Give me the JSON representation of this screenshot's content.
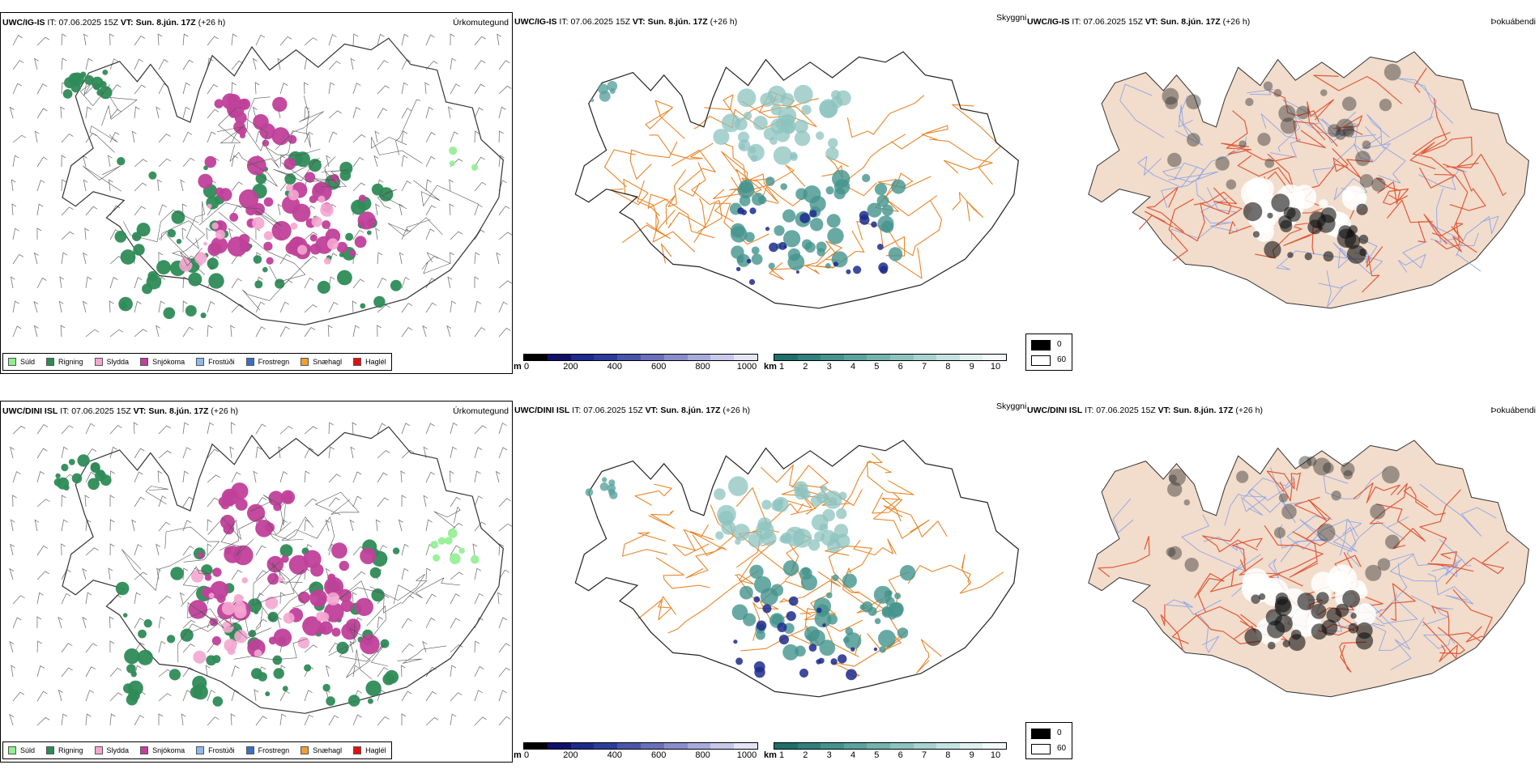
{
  "rows": [
    {
      "model": "UWC/IG-IS",
      "it_label": "IT:",
      "it_value": "07.06.2025 15Z",
      "vt_label": "VT:",
      "vt_value": "Sun. 8.jún. 17Z",
      "lead": "(+26 h)"
    },
    {
      "model": "UWC/DINI ISL",
      "it_label": "IT:",
      "it_value": "07.06.2025 15Z",
      "vt_label": "VT:",
      "vt_value": "Sun. 8.jún. 17Z",
      "lead": "(+26 h)"
    }
  ],
  "panel_titles": {
    "precip": "Úrkomutegund",
    "visibility": "Skyggni",
    "fog": "Þokuábendi"
  },
  "precip_legend": [
    {
      "label": "Súld",
      "color": "#90ee90"
    },
    {
      "label": "Rigning",
      "color": "#2e8b57"
    },
    {
      "label": "Slydda",
      "color": "#f4a6d0"
    },
    {
      "label": "Snjókoma",
      "color": "#c0409a"
    },
    {
      "label": "Frostúði",
      "color": "#8fb8ec"
    },
    {
      "label": "Frostregn",
      "color": "#3a6fc4"
    },
    {
      "label": "Snæhagl",
      "color": "#f0a030"
    },
    {
      "label": "Haglél",
      "color": "#e01010"
    }
  ],
  "ceiling_bar": {
    "unit": "m",
    "ticks": [
      "0",
      "200",
      "400",
      "600",
      "800",
      "1000"
    ],
    "colors": [
      "#000000",
      "#10106a",
      "#1c2a8c",
      "#2c3c9c",
      "#4a55aa",
      "#6a6fbc",
      "#8a8ccc",
      "#a9aadc",
      "#c7c8ea",
      "#e3e4f5"
    ]
  },
  "vis_bar": {
    "unit": "km",
    "ticks": [
      "1",
      "2",
      "3",
      "4",
      "5",
      "6",
      "7",
      "8",
      "9",
      "10"
    ],
    "colors": [
      "#1f6f6a",
      "#2f817c",
      "#44938d",
      "#5aa39e",
      "#72b3ae",
      "#8cc3bf",
      "#a7d3d0",
      "#c3e2e0",
      "#def0ef",
      "#f4fafa"
    ]
  },
  "fog_legend": [
    {
      "label": "0",
      "color": "#000000"
    },
    {
      "label": "60",
      "color": "#ffffff"
    }
  ],
  "colors": {
    "land": "#f2dccb",
    "coast": "#222222",
    "roads": "#e8862a",
    "fog_roads": "#e05a3a",
    "rivers": "#8ea6e8"
  }
}
